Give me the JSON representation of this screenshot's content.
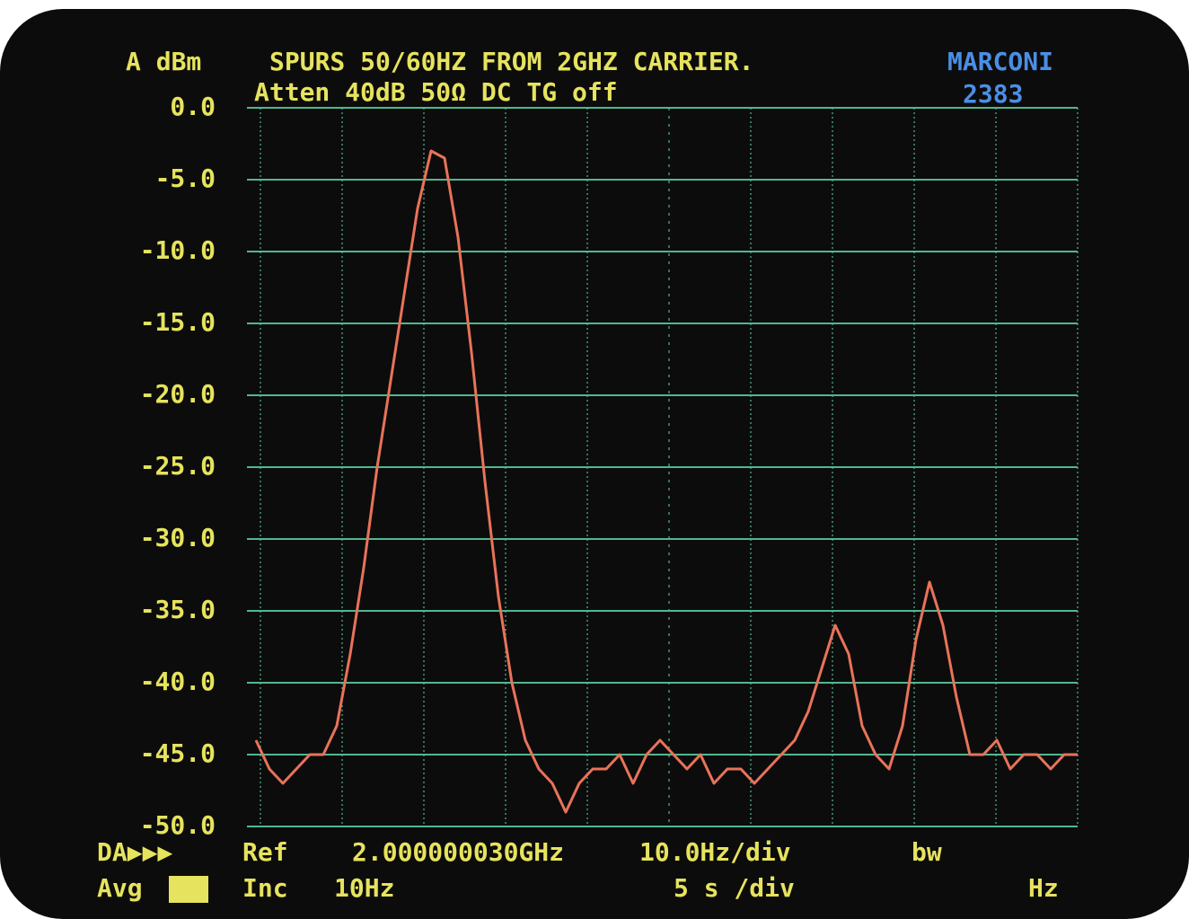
{
  "chart_data": {
    "type": "line",
    "title": "SPURS 50/60HZ FROM 2GHZ CARRIER.",
    "subtitle": "Atten 40dB  50Ω  DC TG off",
    "y_label": "A dBm",
    "brand": "MARCONI",
    "model": "2383",
    "footer": {
      "mode": "DA▶▶▶",
      "avg": "Avg",
      "ref_label": "Ref",
      "ref_value": "2.000000030GHz",
      "x_scale": "10.0Hz/div",
      "res": "bw",
      "inc_label": "Inc",
      "inc_value": "10Hz",
      "sweep": "5 s /div",
      "vid": "Hz"
    },
    "categories": [
      null,
      null,
      null,
      null,
      null,
      null,
      null,
      null,
      null,
      null,
      null,
      null,
      null,
      null,
      null,
      null,
      null,
      null,
      null,
      null,
      null,
      null,
      null,
      null,
      null,
      null,
      null,
      null,
      null,
      null,
      null,
      null,
      null,
      null,
      null,
      null,
      null,
      null,
      null,
      null,
      null,
      null,
      null,
      null,
      null,
      null,
      null,
      null,
      null,
      null,
      null,
      null,
      null,
      null,
      null,
      null,
      null,
      null,
      null,
      null,
      null,
      null
    ],
    "series": [
      {
        "color": "#e8735a",
        "values": [
          -44,
          -46,
          -47,
          -46,
          -45,
          -45,
          -43,
          -38,
          -32,
          -25,
          -19,
          -13,
          -7,
          -3,
          -3.5,
          -9,
          -17,
          -26,
          -34,
          -40,
          -44,
          -46,
          -47,
          -49,
          -47,
          -46,
          -46,
          -45,
          -47,
          -45,
          -44,
          -45,
          -46,
          -45,
          -47,
          -46,
          -46,
          -47,
          -46,
          -45,
          -44,
          -42,
          -39,
          -36,
          -38,
          -43,
          -45,
          -46,
          -43,
          -37,
          -33,
          -36,
          -41,
          -45,
          -45,
          -44,
          -46,
          -45,
          -45,
          -46,
          -45,
          -45
        ]
      }
    ],
    "ylim": [
      -50,
      0
    ],
    "yticks": [
      {
        "value": 0,
        "label": "0.0"
      },
      {
        "value": -5,
        "label": "-5.0"
      },
      {
        "value": -10,
        "label": "-10.0"
      },
      {
        "value": -15,
        "label": "-15.0"
      },
      {
        "value": -20,
        "label": "-20.0"
      },
      {
        "value": -25,
        "label": "-25.0"
      },
      {
        "value": -30,
        "label": "-30.0"
      },
      {
        "value": -35,
        "label": "-35.0"
      },
      {
        "value": -40,
        "label": "-40.0"
      },
      {
        "value": -45,
        "label": "-45.0"
      },
      {
        "value": -50,
        "label": "-50.0"
      }
    ],
    "grid": true,
    "grid_color": "#4fb890"
  }
}
